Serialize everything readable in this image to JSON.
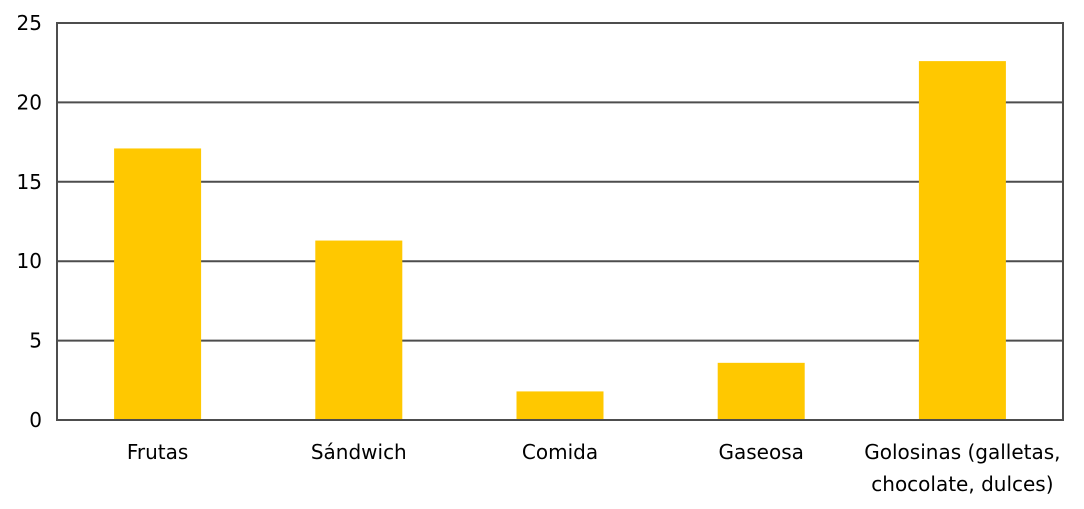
{
  "chart_data": {
    "type": "bar",
    "categories": [
      "Frutas",
      "Sándwich",
      "Comida",
      "Gaseosa",
      "Golosinas (galletas, chocolate, dulces)"
    ],
    "category_label_lines": [
      [
        "Frutas"
      ],
      [
        "Sándwich"
      ],
      [
        "Comida"
      ],
      [
        "Gaseosa"
      ],
      [
        "Golosinas (galletas,",
        "chocolate, dulces)"
      ]
    ],
    "values": [
      17.1,
      11.3,
      1.8,
      3.6,
      22.6
    ],
    "ylim": [
      0,
      25
    ],
    "yticks": [
      0,
      5,
      10,
      15,
      20,
      25
    ],
    "ytick_labels": [
      "0",
      "5",
      "10",
      "15",
      "20",
      "25"
    ],
    "grid": true,
    "title": "",
    "xlabel": "",
    "ylabel": "",
    "colors": {
      "bar": "#FFC800",
      "grid": "#4d4d4d",
      "frame": "#4d4d4d"
    }
  }
}
